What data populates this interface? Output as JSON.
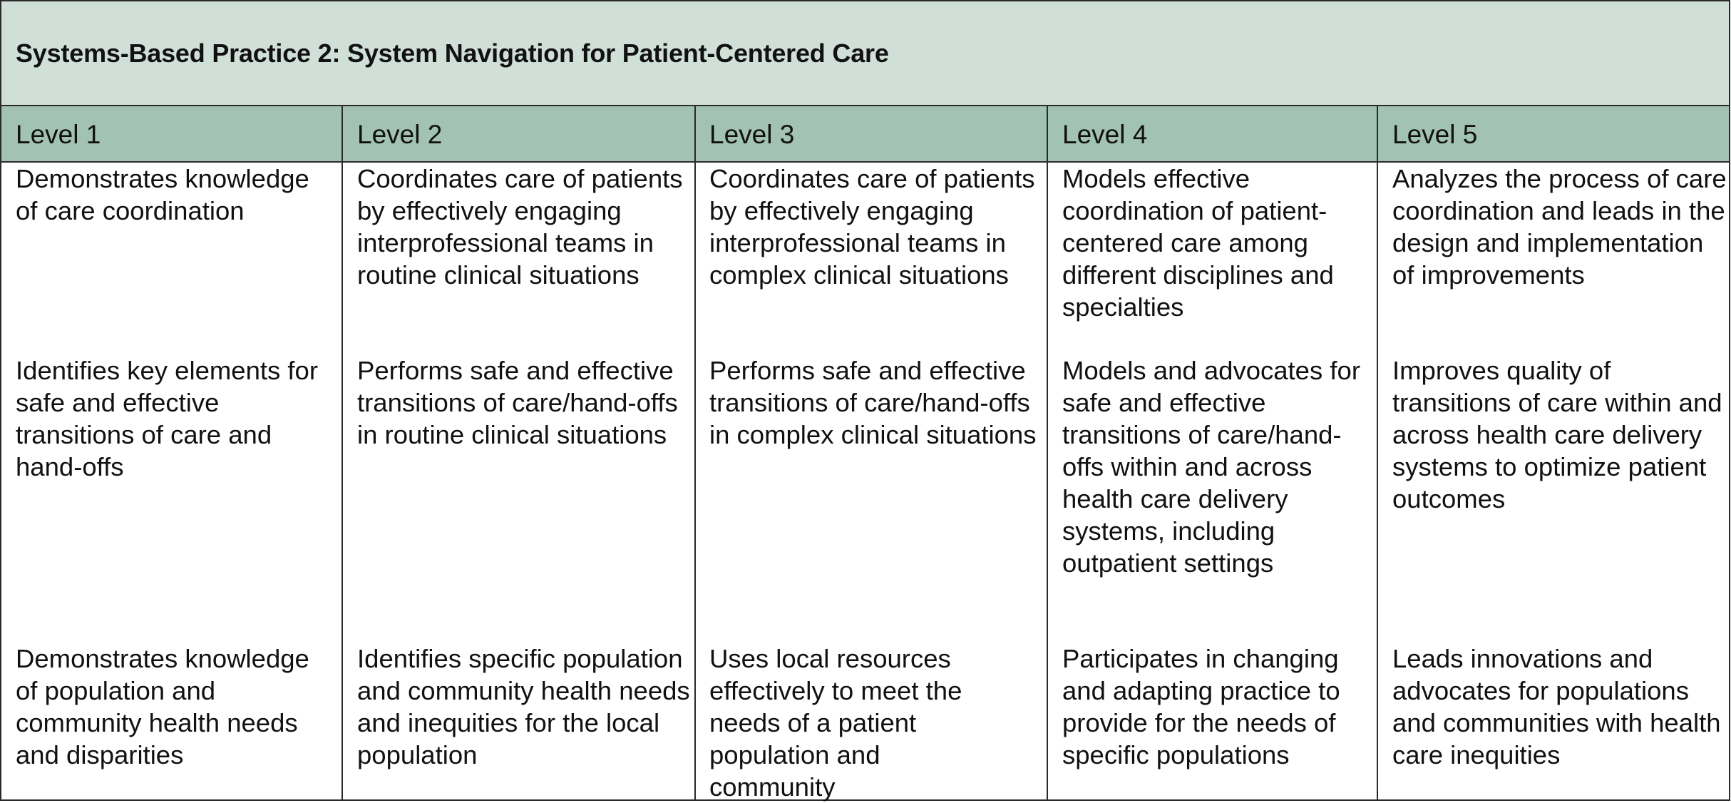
{
  "title": "Systems-Based Practice 2: System Navigation for Patient-Centered Care",
  "levels": [
    "Level 1",
    "Level 2",
    "Level 3",
    "Level 4",
    "Level 5"
  ],
  "rows": [
    [
      "Demonstrates knowledge of care coordination",
      "Coordinates care of patients by effectively engaging interprofessional teams in routine clinical situations",
      "Coordinates care of patients by effectively engaging interprofessional teams in complex clinical situations",
      "Models effective coordination of patient-centered care among different disciplines and specialties",
      "Analyzes the process of care coordination and leads in the design and implementation of improvements"
    ],
    [
      "Identifies key elements for safe and effective transitions of care and hand-offs",
      "Performs safe and effective transitions of care/hand-offs in routine clinical situations",
      "Performs safe and effective transitions of care/hand-offs in complex clinical situations",
      "Models and advocates for safe and effective transitions of care/hand-offs within and across health care delivery systems, including outpatient settings",
      "Improves quality of transitions of care within and across health care delivery systems to optimize patient outcomes"
    ],
    [
      "Demonstrates knowledge of population and community health needs and disparities",
      "Identifies specific population and community health needs and inequities for the local population",
      "Uses local resources effectively to meet the needs of a patient population and community",
      "Participates in changing and adapting practice to provide for the needs of specific populations",
      "Leads innovations and advocates for populations and communities with health care inequities"
    ]
  ]
}
